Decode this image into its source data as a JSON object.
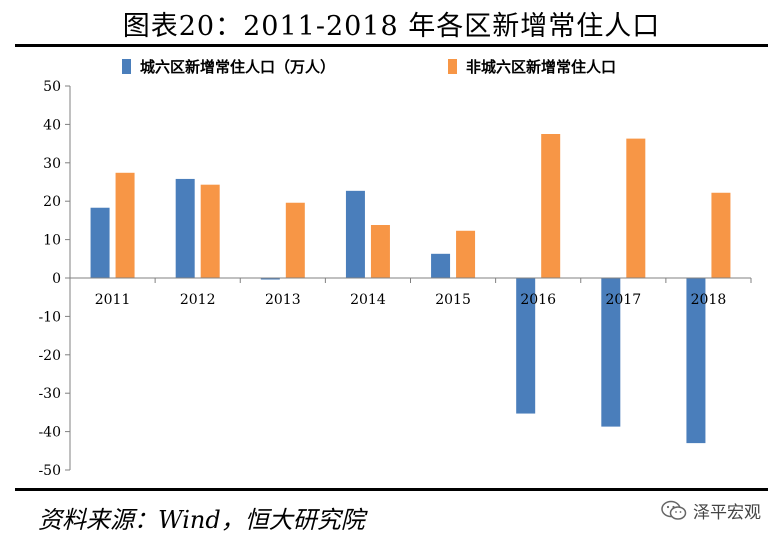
{
  "title": "图表20：2011-2018 年各区新增常住人口",
  "footer": {
    "source": "资料来源：Wind，恒大研究院",
    "watermark": "泽平宏观",
    "watermark_icon": "wechat-icon"
  },
  "colors": {
    "series1": "#4a7ebb",
    "series2": "#f79646"
  },
  "chart_data": {
    "type": "bar",
    "title": "图表20：2011-2018 年各区新增常住人口",
    "xlabel": "",
    "ylabel": "",
    "categories": [
      "2011",
      "2012",
      "2013",
      "2014",
      "2015",
      "2016",
      "2017",
      "2018"
    ],
    "series": [
      {
        "name": "城六区新增常住人口（万人）",
        "values": [
          18.3,
          25.8,
          -0.4,
          22.7,
          6.3,
          -35.3,
          -38.7,
          -43.0
        ]
      },
      {
        "name": "非城六区新增常住人口",
        "values": [
          27.4,
          24.3,
          19.6,
          13.8,
          12.3,
          37.5,
          36.3,
          22.2
        ]
      }
    ],
    "ylim": [
      -50,
      50
    ],
    "yticks": [
      -50,
      -40,
      -30,
      -20,
      -10,
      0,
      10,
      20,
      30,
      40,
      50
    ],
    "grid": false,
    "legend_position": "top"
  }
}
